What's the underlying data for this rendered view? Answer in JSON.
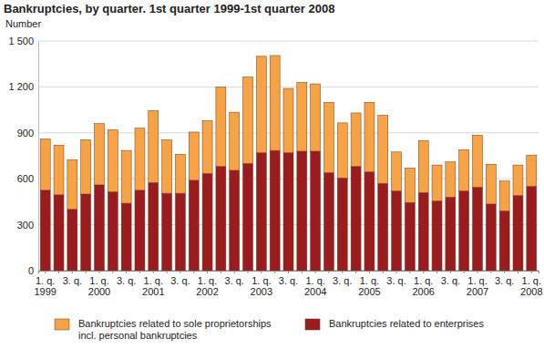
{
  "chart_data": {
    "type": "bar",
    "title": "Bankruptcies, by quarter. 1st quarter 1999-1st quarter 2008",
    "y_label": "Number",
    "categories": [
      "1. q. 1999",
      null,
      "3. q.",
      null,
      "1. q. 2000",
      null,
      "3. q.",
      null,
      "1. q. 2001",
      null,
      "3. q.",
      null,
      "1. q. 2002",
      null,
      "3. q.",
      null,
      "1. q. 2003",
      null,
      "3. q.",
      null,
      "1. q. 2004",
      null,
      "3. q.",
      null,
      "1. q. 2005",
      null,
      "3. q.",
      null,
      "1. q. 2006",
      null,
      "3. q.",
      null,
      "1. q. 2007",
      null,
      "3. q.",
      null,
      "1. q. 2008"
    ],
    "series": [
      {
        "name": "Bankruptcies related to enterprises",
        "color": "#9b1b1e",
        "values": [
          525,
          495,
          400,
          500,
          560,
          515,
          440,
          525,
          575,
          505,
          505,
          590,
          635,
          680,
          655,
          700,
          770,
          785,
          770,
          780,
          780,
          640,
          605,
          680,
          645,
          570,
          520,
          445,
          510,
          455,
          480,
          520,
          545,
          435,
          390,
          490,
          550
        ]
      },
      {
        "name": "Bankruptcies related to sole proprietorships incl. personal bankruptcies",
        "color": "#f7a245",
        "values": [
          335,
          325,
          325,
          355,
          400,
          405,
          345,
          405,
          470,
          350,
          255,
          315,
          345,
          520,
          380,
          565,
          630,
          620,
          420,
          450,
          440,
          460,
          360,
          350,
          455,
          445,
          255,
          225,
          340,
          235,
          230,
          270,
          340,
          260,
          195,
          200,
          205
        ]
      }
    ],
    "stacked": true,
    "ylim": [
      0,
      1500
    ],
    "yticks": [
      0,
      300,
      600,
      900,
      {
        "value": 1200,
        "label": "1 200"
      },
      {
        "value": 1500,
        "label": "1 500"
      }
    ],
    "grid": true,
    "legend": "bottom"
  }
}
